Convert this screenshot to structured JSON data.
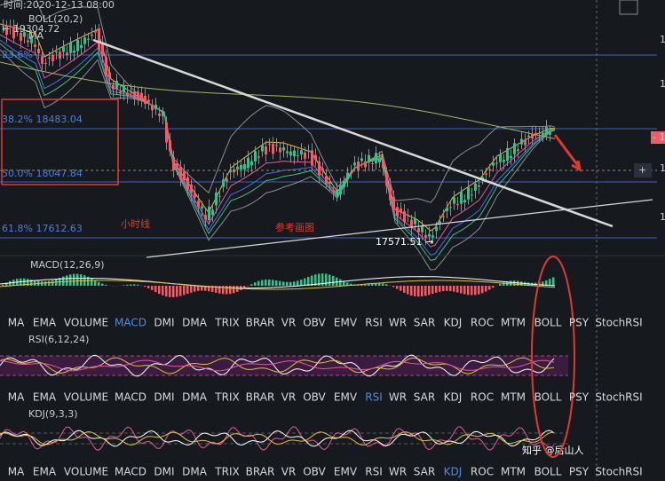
{
  "header": {
    "time": "时间:2020-12-13 08:00",
    "boll": "BOLL(20,2)",
    "high_marker": "← 19304.72",
    "ma": "MA"
  },
  "fib_levels": [
    {
      "label": "23.6%"
    },
    {
      "label": "38.2% 18483.04"
    },
    {
      "label": "50.0% 18047.84"
    },
    {
      "label": "61.8% 17612.63"
    }
  ],
  "annotations": {
    "hourly": "小时线",
    "reference": "参考画图",
    "low_marker": "17571.51 →"
  },
  "right_axis": [
    "1",
    "1",
    "- 1",
    "1",
    "1"
  ],
  "crosshair_button": "+",
  "panels": {
    "macd": "MACD(12,26,9)",
    "rsi": "RSI(6,12,24)",
    "kdj": "KDJ(9,3,3)"
  },
  "tabs": [
    "MA",
    "EMA",
    "VOLUME",
    "MACD",
    "DMI",
    "DMA",
    "TRIX",
    "BRAR",
    "VR",
    "OBV",
    "EMV",
    "RSI",
    "WR",
    "SAR",
    "KDJ",
    "ROC",
    "MTM",
    "BOLL",
    "PSY",
    "StochRSI"
  ],
  "watermark": "知乎 @后山人"
}
